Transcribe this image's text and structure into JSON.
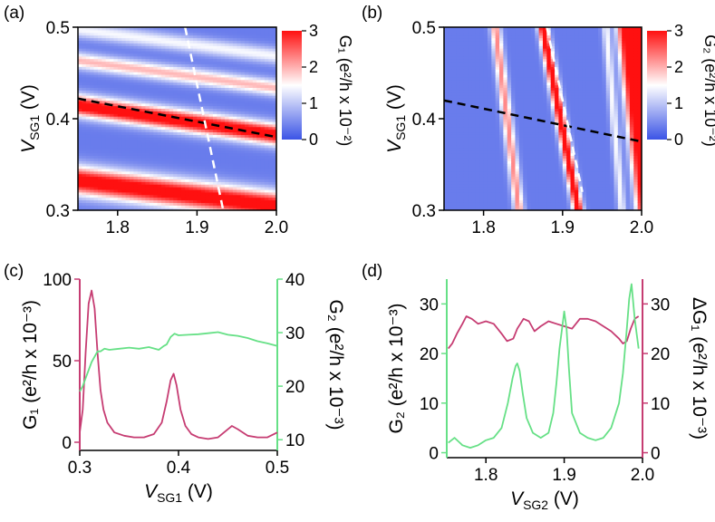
{
  "chart_data": [
    {
      "panel": "(a)",
      "type": "heatmap",
      "xlim": [
        1.75,
        2.0
      ],
      "ylim": [
        0.3,
        0.5
      ],
      "xticks": [
        "1.8",
        "1.9",
        "2.0"
      ],
      "yticks": [
        "0.3",
        "0.4",
        "0.5"
      ],
      "ylabel_main": "V",
      "ylabel_sub": "SG1",
      "ylabel_unit": " (V)",
      "colorbar": {
        "min": 0,
        "max": 3,
        "ticks": [
          "0",
          "1",
          "2",
          "3"
        ],
        "label": "G₁ (e²/h x 10⁻²)",
        "colors": [
          "#3b54e6",
          "#ffffff",
          "#ff1010"
        ]
      },
      "ridges": [
        {
          "x": [
            1.75,
            2.0
          ],
          "y": [
            0.333,
            0.305
          ],
          "peak": 3.0,
          "width": 0.012
        },
        {
          "x": [
            1.75,
            2.0
          ],
          "y": [
            0.415,
            0.383
          ],
          "peak": 3.0,
          "width": 0.009
        },
        {
          "x": [
            1.75,
            2.0
          ],
          "y": [
            0.464,
            0.434
          ],
          "peak": 1.6,
          "width": 0.007
        },
        {
          "x": [
            1.75,
            2.0
          ],
          "y": [
            0.498,
            0.469
          ],
          "peak": 1.1,
          "width": 0.007
        }
      ],
      "lines": [
        {
          "style": "dashed",
          "color": "#000000",
          "x": [
            1.75,
            2.0
          ],
          "y": [
            0.422,
            0.38
          ]
        },
        {
          "style": "dashed",
          "color": "#ffffff",
          "x": [
            1.885,
            1.933
          ],
          "y": [
            0.5,
            0.3
          ]
        }
      ]
    },
    {
      "panel": "(b)",
      "type": "heatmap",
      "xlim": [
        1.75,
        2.0
      ],
      "ylim": [
        0.3,
        0.5
      ],
      "xticks": [
        "1.8",
        "1.9",
        "2.0"
      ],
      "yticks": [
        "0.3",
        "0.4",
        "0.5"
      ],
      "ylabel_main": "V",
      "ylabel_sub": "SG1",
      "ylabel_unit": " (V)",
      "colorbar": {
        "min": 0,
        "max": 3,
        "ticks": [
          "0",
          "1",
          "2",
          "3"
        ],
        "label": "G₂ (e²/h x 10⁻²)",
        "colors": [
          "#3b54e6",
          "#ffffff",
          "#ff1010"
        ]
      },
      "ridges": [
        {
          "x": [
            1.815,
            1.845
          ],
          "y": [
            0.5,
            0.3
          ],
          "peak": 1.9,
          "width": 0.005
        },
        {
          "x": [
            1.875,
            1.92
          ],
          "y": [
            0.5,
            0.3
          ],
          "peak": 3.0,
          "width": 0.005
        },
        {
          "x": [
            1.955,
            1.975
          ],
          "y": [
            0.5,
            0.3
          ],
          "peak": 1.1,
          "width": 0.004
        }
      ],
      "edge": {
        "x": [
          1.97,
          1.995
        ],
        "y": [
          0.5,
          0.3
        ]
      },
      "lines": [
        {
          "style": "dashed",
          "color": "#000000",
          "x": [
            1.75,
            2.0
          ],
          "y": [
            0.42,
            0.375
          ]
        },
        {
          "style": "dashed",
          "color": "#ffffff",
          "x": [
            1.88,
            1.925
          ],
          "y": [
            0.5,
            0.32
          ]
        }
      ]
    },
    {
      "panel": "(c)",
      "type": "line",
      "xlim": [
        0.3,
        0.5
      ],
      "xticks": [
        "0.3",
        "0.4",
        "0.5"
      ],
      "xlabel_main": "V",
      "xlabel_sub": "SG1",
      "xlabel_unit": " (V)",
      "ylim_left": [
        -5,
        100
      ],
      "yticks_left": [
        "0",
        "50",
        "100"
      ],
      "ylim_right": [
        8,
        40
      ],
      "yticks_right": [
        "10",
        "20",
        "30",
        "40"
      ],
      "ylabel_left": "G₁ (e²/h x 10⁻³)",
      "ylabel_right": "G₂ (e²/h x 10⁻³)",
      "series": [
        {
          "name": "G₁",
          "axis": "left",
          "color": "#c63c72",
          "x": [
            0.3,
            0.303,
            0.306,
            0.309,
            0.312,
            0.315,
            0.318,
            0.321,
            0.324,
            0.328,
            0.335,
            0.345,
            0.355,
            0.365,
            0.375,
            0.383,
            0.388,
            0.392,
            0.395,
            0.398,
            0.402,
            0.407,
            0.413,
            0.42,
            0.43,
            0.44,
            0.448,
            0.454,
            0.46,
            0.47,
            0.48,
            0.49,
            0.5
          ],
          "y": [
            6,
            20,
            55,
            85,
            93,
            82,
            55,
            32,
            20,
            12,
            6,
            4,
            3,
            3,
            5,
            12,
            25,
            38,
            42,
            35,
            20,
            10,
            5,
            3,
            2,
            3,
            7,
            10,
            8,
            4,
            3,
            3,
            6
          ]
        },
        {
          "name": "G₂",
          "axis": "right",
          "color": "#66e086",
          "x": [
            0.3,
            0.303,
            0.306,
            0.309,
            0.312,
            0.315,
            0.318,
            0.321,
            0.325,
            0.33,
            0.34,
            0.35,
            0.36,
            0.37,
            0.38,
            0.385,
            0.388,
            0.392,
            0.396,
            0.4,
            0.41,
            0.42,
            0.43,
            0.44,
            0.45,
            0.46,
            0.47,
            0.48,
            0.49,
            0.5
          ],
          "y": [
            19,
            20,
            21.5,
            23,
            24.5,
            25.5,
            26.5,
            26.5,
            27,
            26.8,
            27,
            27.2,
            27,
            27.3,
            26.8,
            27.5,
            27.8,
            29.2,
            29.8,
            29.5,
            29.6,
            29.7,
            29.9,
            30.1,
            29.6,
            29.4,
            29,
            28.4,
            28,
            27.5
          ]
        }
      ]
    },
    {
      "panel": "(d)",
      "type": "line",
      "xlim": [
        1.75,
        2.0
      ],
      "xticks": [
        "1.8",
        "1.9",
        "2.0"
      ],
      "xlabel_main": "V",
      "xlabel_sub": "SG2",
      "xlabel_unit": " (V)",
      "ylim_left": [
        -1,
        35
      ],
      "yticks_left": [
        "0",
        "10",
        "20",
        "30"
      ],
      "ylim_right": [
        -1,
        35
      ],
      "yticks_right": [
        "0",
        "10",
        "20",
        "30"
      ],
      "ylabel_left": "G₂ (e²/h x 10⁻³)",
      "ylabel_right": "ΔG₁ (e²/h x 10⁻³)",
      "series": [
        {
          "name": "ΔG₁",
          "axis": "right",
          "color": "#c63c72",
          "x": [
            1.752,
            1.757,
            1.763,
            1.77,
            1.775,
            1.782,
            1.79,
            1.8,
            1.81,
            1.82,
            1.827,
            1.835,
            1.84,
            1.848,
            1.855,
            1.862,
            1.87,
            1.88,
            1.89,
            1.9,
            1.91,
            1.92,
            1.93,
            1.94,
            1.95,
            1.96,
            1.97,
            1.975,
            1.98,
            1.985,
            1.99,
            1.995
          ],
          "y": [
            21,
            22,
            24,
            26,
            27.5,
            27,
            26,
            26.5,
            26,
            24,
            22.5,
            23,
            25,
            27,
            26.5,
            24.5,
            25.5,
            26.5,
            26,
            25.5,
            25,
            27,
            27,
            26.5,
            25.5,
            24.5,
            23,
            22,
            22.5,
            25,
            27,
            27.5
          ]
        },
        {
          "name": "G₂",
          "axis": "left",
          "color": "#66e086",
          "x": [
            1.752,
            1.76,
            1.77,
            1.78,
            1.79,
            1.8,
            1.81,
            1.82,
            1.828,
            1.834,
            1.838,
            1.84,
            1.843,
            1.847,
            1.852,
            1.86,
            1.87,
            1.88,
            1.886,
            1.89,
            1.894,
            1.898,
            1.9,
            1.903,
            1.906,
            1.91,
            1.92,
            1.93,
            1.94,
            1.95,
            1.96,
            1.97,
            1.975,
            1.98,
            1.983,
            1.986,
            1.99,
            1.995
          ],
          "y": [
            2,
            3,
            1.5,
            1,
            1.5,
            2.5,
            3,
            5,
            10,
            15,
            17.5,
            18,
            16.5,
            12,
            7,
            4,
            3,
            4,
            8,
            14,
            21,
            26,
            28.5,
            25,
            17,
            8,
            4,
            3,
            2.5,
            3,
            5,
            10,
            16,
            25,
            31,
            34,
            27,
            21
          ]
        }
      ]
    }
  ]
}
